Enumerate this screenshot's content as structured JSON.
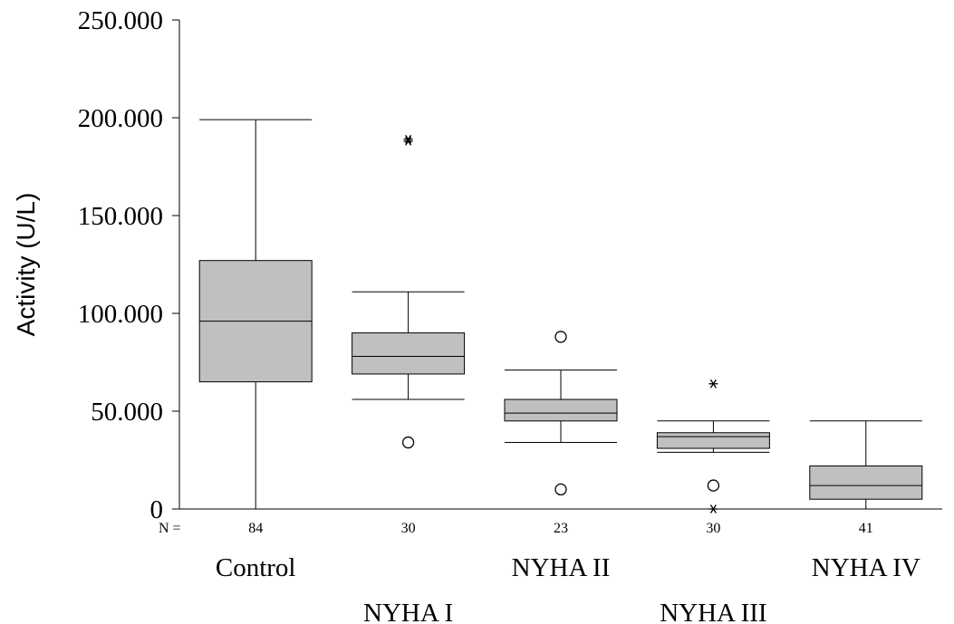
{
  "chart_data": {
    "type": "box",
    "title": "",
    "xlabel": "",
    "ylabel": "Activity (U/L)",
    "ylim": [
      0,
      250000
    ],
    "yticks": [
      {
        "value": 0,
        "label": "0"
      },
      {
        "value": 50000,
        "label": "50.000"
      },
      {
        "value": 100000,
        "label": "100.000"
      },
      {
        "value": 150000,
        "label": "150.000"
      },
      {
        "value": 200000,
        "label": "200.000"
      },
      {
        "value": 250000,
        "label": "250.000"
      }
    ],
    "n_prefix": "N =",
    "categories": [
      "Control",
      "NYHA I",
      "NYHA II",
      "NYHA III",
      "NYHA IV"
    ],
    "n": [
      "84",
      "30",
      "23",
      "30",
      "41"
    ],
    "boxes": [
      {
        "category": "Control",
        "min": 0,
        "q1": 65000,
        "median": 96000,
        "q3": 127000,
        "max": 199000,
        "outliers": [],
        "extremes": []
      },
      {
        "category": "NYHA I",
        "min": 56000,
        "q1": 69000,
        "median": 78000,
        "q3": 90000,
        "max": 111000,
        "outliers": [
          34000
        ],
        "extremes": [
          188000,
          189000
        ]
      },
      {
        "category": "NYHA II",
        "min": 34000,
        "q1": 45000,
        "median": 49000,
        "q3": 56000,
        "max": 71000,
        "outliers": [
          88000,
          10000
        ],
        "extremes": []
      },
      {
        "category": "NYHA III",
        "min": 29000,
        "q1": 31000,
        "median": 37000,
        "q3": 39000,
        "max": 45000,
        "outliers": [
          12000
        ],
        "extremes": [
          64000,
          0
        ]
      },
      {
        "category": "NYHA IV",
        "min": 0,
        "q1": 5000,
        "median": 12000,
        "q3": 22000,
        "max": 45000,
        "outliers": [],
        "extremes": []
      }
    ],
    "box_color": "#c0c0c0",
    "line_color": "#000000",
    "grid": false,
    "legend": "none"
  }
}
